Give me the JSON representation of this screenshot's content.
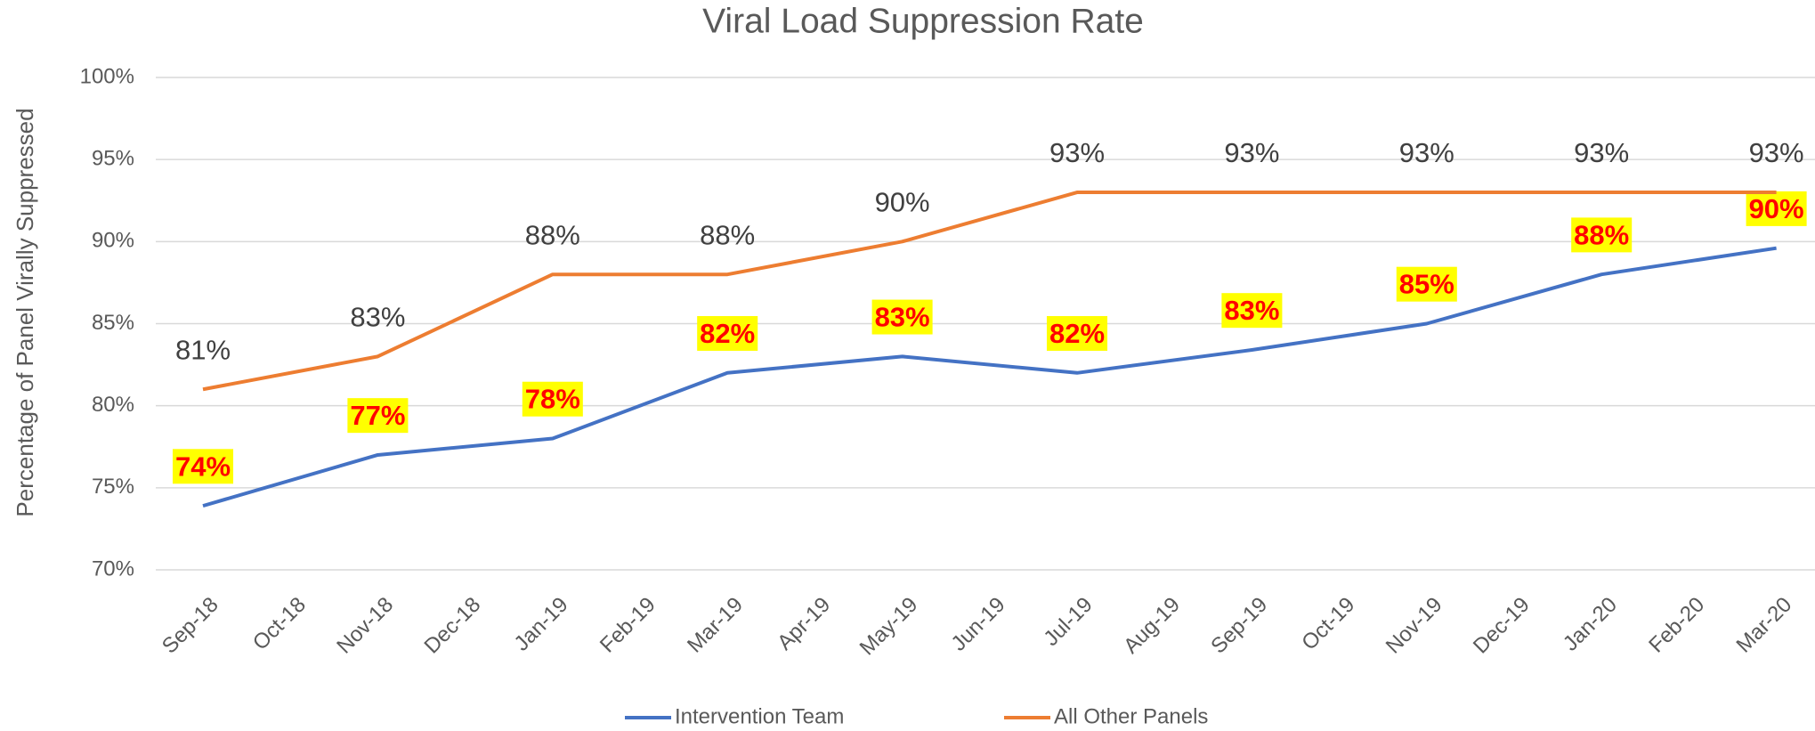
{
  "chart_data": {
    "type": "line",
    "title": "Viral Load Suppression Rate",
    "y_label": "Percentage of Panel Virally Suppressed",
    "x": [
      "2018-09",
      "2018-11",
      "2019-01",
      "2019-03",
      "2019-05",
      "2019-07",
      "2019-09",
      "2019-11",
      "2020-01",
      "2020-03"
    ],
    "xticks": [
      {
        "value": "2018-09",
        "label": "Sep-18"
      },
      {
        "value": "2018-10",
        "label": "Oct-18"
      },
      {
        "value": "2018-11",
        "label": "Nov-18"
      },
      {
        "value": "2018-12",
        "label": "Dec-18"
      },
      {
        "value": "2019-01",
        "label": "Jan-19"
      },
      {
        "value": "2019-02",
        "label": "Feb-19"
      },
      {
        "value": "2019-03",
        "label": "Mar-19"
      },
      {
        "value": "2019-04",
        "label": "Apr-19"
      },
      {
        "value": "2019-05",
        "label": "May-19"
      },
      {
        "value": "2019-06",
        "label": "Jun-19"
      },
      {
        "value": "2019-07",
        "label": "Jul-19"
      },
      {
        "value": "2019-08",
        "label": "Aug-19"
      },
      {
        "value": "2019-09",
        "label": "Sep-19"
      },
      {
        "value": "2019-10",
        "label": "Oct-19"
      },
      {
        "value": "2019-11",
        "label": "Nov-19"
      },
      {
        "value": "2019-12",
        "label": "Dec-19"
      },
      {
        "value": "2020-01",
        "label": "Jan-20"
      },
      {
        "value": "2020-02",
        "label": "Feb-20"
      },
      {
        "value": "2020-03",
        "label": "Mar-20"
      }
    ],
    "ylim": [
      70,
      100
    ],
    "yticks": [
      {
        "value": 70,
        "label": "70%"
      },
      {
        "value": 75,
        "label": "75%"
      },
      {
        "value": 80,
        "label": "80%"
      },
      {
        "value": 85,
        "label": "85%"
      },
      {
        "value": 90,
        "label": "90%"
      },
      {
        "value": 95,
        "label": "95%"
      },
      {
        "value": 100,
        "label": "100%"
      }
    ],
    "grid": true,
    "legend": "bottom",
    "series": [
      {
        "name": "Intervention Team",
        "color": "#4472c4",
        "values": [
          73.9,
          77,
          78,
          82,
          83,
          82,
          83.4,
          85,
          88,
          89.6
        ],
        "value_labels": [
          "74%",
          "77%",
          "78%",
          "82%",
          "83%",
          "82%",
          "83%",
          "85%",
          "88%",
          "90%"
        ]
      },
      {
        "name": "All Other Panels",
        "color": "#ed7d31",
        "values": [
          81,
          83,
          88,
          88,
          90,
          93,
          93,
          93,
          93,
          93
        ],
        "value_labels": [
          "81%",
          "83%",
          "88%",
          "88%",
          "90%",
          "93%",
          "93%",
          "93%",
          "93%",
          "93%"
        ]
      }
    ]
  }
}
